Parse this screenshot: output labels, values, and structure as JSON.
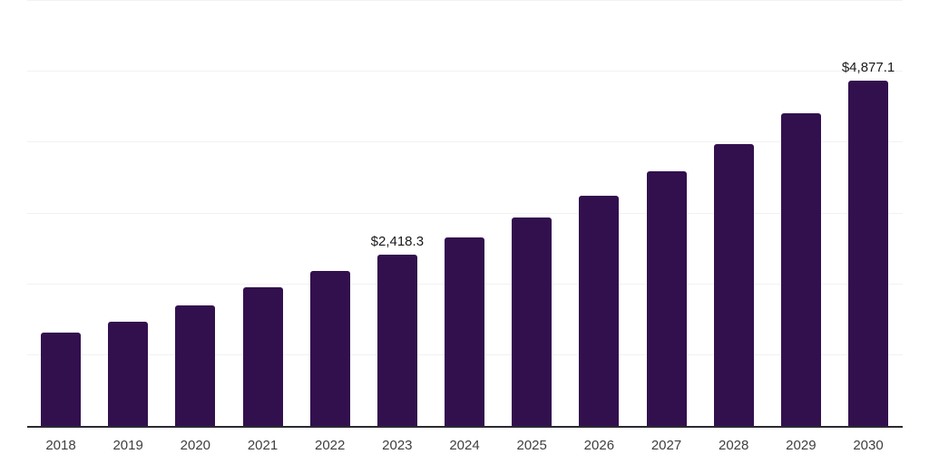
{
  "chart_data": {
    "type": "bar",
    "title": "",
    "xlabel": "",
    "ylabel": "",
    "categories": [
      "2018",
      "2019",
      "2020",
      "2021",
      "2022",
      "2023",
      "2024",
      "2025",
      "2026",
      "2027",
      "2028",
      "2029",
      "2030"
    ],
    "values": [
      1315,
      1470,
      1700,
      1955,
      2185,
      2418.3,
      2660,
      2940,
      3245,
      3590,
      3975,
      4410,
      4877.1
    ],
    "value_labels": [
      "",
      "",
      "",
      "",
      "",
      "$2,418.3",
      "",
      "",
      "",
      "",
      "",
      "",
      "$4,877.1"
    ],
    "ylim": [
      0,
      6000
    ],
    "grid_interval": 1000,
    "grid_on": true,
    "legend": "none",
    "y_tick_labels_visible": false,
    "colors": {
      "bar": "#32104E",
      "gridline": "#F2F2F2",
      "axis_line": "#2B2A31",
      "value_label": "#1A1A1A",
      "tick_label": "#3F3F3F",
      "background": "#FFFFFF"
    }
  }
}
